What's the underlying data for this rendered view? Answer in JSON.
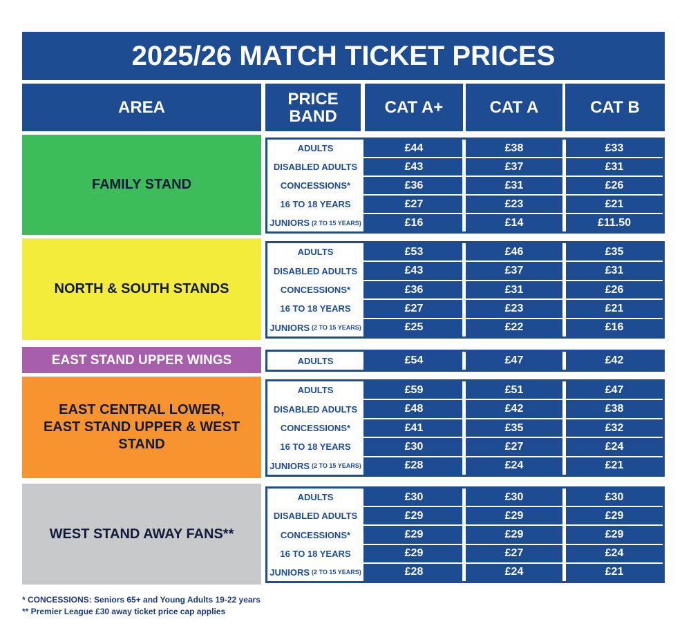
{
  "title": "2025/26 MATCH TICKET PRICES",
  "header": [
    "AREA",
    "PRICE BAND",
    "CAT A+",
    "CAT A",
    "CAT B"
  ],
  "sections": [
    {
      "area": "FAMILY STAND",
      "rows": [
        {
          "band": "ADULTS",
          "prices": [
            "£44",
            "£38",
            "£33"
          ]
        },
        {
          "band": "DISABLED ADULTS",
          "prices": [
            "£43",
            "£37",
            "£31"
          ]
        },
        {
          "band": "CONCESSIONS*",
          "prices": [
            "£36",
            "£31",
            "£26"
          ]
        },
        {
          "band": "16 TO 18 YEARS",
          "prices": [
            "£27",
            "£23",
            "£21"
          ]
        },
        {
          "band": "JUNIORS",
          "band_note": "(2 TO 15 YEARS)",
          "prices": [
            "£16",
            "£14",
            "£11.50"
          ]
        }
      ]
    },
    {
      "area": "NORTH & SOUTH STANDS",
      "rows": [
        {
          "band": "ADULTS",
          "prices": [
            "£53",
            "£46",
            "£35"
          ]
        },
        {
          "band": "DISABLED ADULTS",
          "prices": [
            "£43",
            "£37",
            "£31"
          ]
        },
        {
          "band": "CONCESSIONS*",
          "prices": [
            "£36",
            "£31",
            "£26"
          ]
        },
        {
          "band": "16 TO 18 YEARS",
          "prices": [
            "£27",
            "£23",
            "£21"
          ]
        },
        {
          "band": "JUNIORS",
          "band_note": "(2 TO 15 YEARS)",
          "prices": [
            "£25",
            "£22",
            "£16"
          ]
        }
      ]
    },
    {
      "area": "EAST STAND UPPER WINGS",
      "rows": [
        {
          "band": "ADULTS",
          "prices": [
            "£54",
            "£47",
            "£42"
          ]
        }
      ]
    },
    {
      "area": "EAST CENTRAL LOWER, EAST STAND UPPER & WEST STAND",
      "rows": [
        {
          "band": "ADULTS",
          "prices": [
            "£59",
            "£51",
            "£47"
          ]
        },
        {
          "band": "DISABLED ADULTS",
          "prices": [
            "£48",
            "£42",
            "£38"
          ]
        },
        {
          "band": "CONCESSIONS*",
          "prices": [
            "£41",
            "£35",
            "£32"
          ]
        },
        {
          "band": "16 TO 18 YEARS",
          "prices": [
            "£30",
            "£27",
            "£24"
          ]
        },
        {
          "band": "JUNIORS",
          "band_note": "(2 TO 15 YEARS)",
          "prices": [
            "£28",
            "£24",
            "£21"
          ]
        }
      ]
    },
    {
      "area": "WEST STAND AWAY FANS**",
      "rows": [
        {
          "band": "ADULTS",
          "prices": [
            "£30",
            "£30",
            "£30"
          ]
        },
        {
          "band": "DISABLED ADULTS",
          "prices": [
            "£29",
            "£29",
            "£29"
          ]
        },
        {
          "band": "CONCESSIONS*",
          "prices": [
            "£29",
            "£29",
            "£29"
          ]
        },
        {
          "band": "16 TO 18 YEARS",
          "prices": [
            "£29",
            "£27",
            "£24"
          ]
        },
        {
          "band": "JUNIORS",
          "band_note": "(2 TO 15 YEARS)",
          "prices": [
            "£28",
            "£24",
            "£21"
          ]
        }
      ]
    }
  ],
  "footnotes": [
    "* CONCESSIONS: Seniors 65+ and Young Adults 19-22 years",
    "** Premier League £30 away ticket price cap applies"
  ]
}
